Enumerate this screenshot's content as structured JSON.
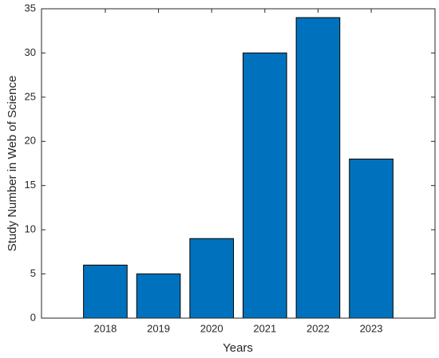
{
  "chart_data": {
    "type": "bar",
    "x_label": "Years",
    "y_label": "Study Number in Web of Science",
    "categories": [
      "2018",
      "2019",
      "2020",
      "2021",
      "2022",
      "2023"
    ],
    "values": [
      6,
      5,
      9,
      30,
      34,
      18
    ],
    "color": "#0072bd",
    "ylim": [
      0,
      35
    ],
    "yticks": [
      0,
      5,
      10,
      15,
      20,
      25,
      30,
      35
    ],
    "grid": false
  }
}
